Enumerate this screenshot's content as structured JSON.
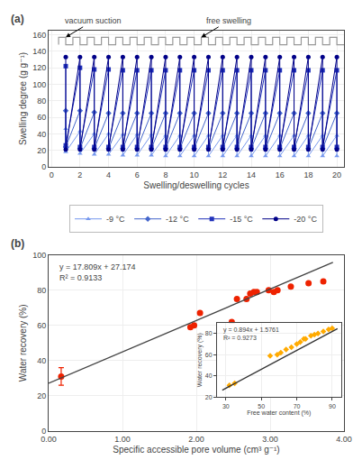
{
  "chart_data": [
    {
      "type": "line",
      "title": "(a)",
      "xlabel": "Swelling/deswelling cycles",
      "ylabel": "Swelling degree (g g⁻¹)",
      "x": [
        1,
        2,
        3,
        4,
        5,
        6,
        7,
        8,
        9,
        10,
        11,
        12,
        13,
        14,
        15,
        16,
        17,
        18,
        19,
        20
      ],
      "series": [
        {
          "name": "-9 °C",
          "color": "#7799ee",
          "marker": "triangle",
          "swollen": [
            46,
            43,
            40,
            40,
            39,
            39,
            39,
            38,
            38,
            38,
            38,
            38,
            38,
            38,
            38,
            38,
            38,
            38,
            38,
            38
          ],
          "unswollen": [
            18,
            16,
            15,
            15,
            14,
            14,
            14,
            13,
            13,
            13,
            13,
            13,
            13,
            13,
            13,
            13,
            13,
            13,
            13,
            13
          ]
        },
        {
          "name": "-12 °C",
          "color": "#4466cc",
          "marker": "diamond",
          "swollen": [
            68,
            68,
            66,
            65,
            65,
            65,
            65,
            65,
            65,
            65,
            65,
            65,
            65,
            65,
            65,
            65,
            65,
            65,
            65,
            65
          ],
          "unswollen": [
            24,
            22,
            22,
            22,
            22,
            22,
            22,
            22,
            22,
            22,
            22,
            22,
            22,
            22,
            22,
            22,
            22,
            22,
            22,
            22
          ]
        },
        {
          "name": "-15 °C",
          "color": "#2233bb",
          "marker": "square",
          "swollen": [
            122,
            120,
            118,
            118,
            117,
            117,
            117,
            117,
            117,
            117,
            117,
            117,
            117,
            117,
            117,
            117,
            117,
            117,
            117,
            117
          ],
          "unswollen": [
            26,
            24,
            24,
            24,
            24,
            24,
            24,
            24,
            24,
            24,
            24,
            24,
            24,
            24,
            24,
            24,
            24,
            24,
            24,
            24
          ]
        },
        {
          "name": "-20 °C",
          "color": "#000088",
          "marker": "circle",
          "swollen": [
            133,
            133,
            133,
            133,
            133,
            133,
            133,
            133,
            133,
            133,
            133,
            133,
            133,
            133,
            133,
            133,
            133,
            133,
            133,
            133
          ],
          "unswollen": [
            21,
            21,
            21,
            21,
            21,
            21,
            21,
            21,
            21,
            21,
            21,
            21,
            21,
            21,
            21,
            21,
            21,
            21,
            21,
            21
          ]
        },
        {
          "color": "#999999",
          "line_style": "step",
          "x": [
            0.5,
            1,
            1.5,
            2,
            2.5,
            3,
            3.5,
            4,
            4.5,
            5,
            5.5,
            6,
            6.5,
            7,
            7.5,
            8,
            8.5,
            9,
            9.5,
            10,
            10.5,
            11,
            11.5,
            12,
            12.5,
            13,
            13.5,
            14,
            14.5,
            15,
            15.5,
            16,
            16.5,
            17,
            17.5,
            18,
            18.5,
            19,
            19.5,
            20,
            20.5
          ],
          "values": [
            148,
            157,
            148,
            157,
            148,
            157,
            148,
            157,
            148,
            157,
            148,
            157,
            148,
            157,
            148,
            157,
            148,
            157,
            148,
            157,
            148,
            157,
            148,
            157,
            148,
            157,
            148,
            157,
            148,
            157,
            148,
            157,
            148,
            157,
            148,
            157,
            148,
            157,
            148,
            157,
            148
          ]
        }
      ],
      "annotations": [
        {
          "text": "vacuum suction",
          "x": 1.0,
          "y": 157
        },
        {
          "text": "free swelling",
          "x": 10.5,
          "y": 157
        }
      ],
      "xlim": [
        -0.2,
        20.5
      ],
      "xticks": [
        0,
        2,
        4,
        6,
        8,
        10,
        12,
        14,
        16,
        18,
        20
      ],
      "ylim": [
        0,
        165
      ],
      "yticks": [
        0,
        20,
        40,
        60,
        80,
        100,
        120,
        140,
        160
      ],
      "grid": true,
      "legend": "bottom"
    },
    {
      "type": "scatter",
      "title": "(b)",
      "xlabel": "Specific accessible pore volume (cm³ g⁻¹)",
      "ylabel": "Water recovery (%)",
      "series": [
        {
          "type": "scatter",
          "color": "#ee2200",
          "marker": "circle",
          "x": [
            0.17,
            1.92,
            1.97,
            2.05,
            2.48,
            2.55,
            2.68,
            2.73,
            2.78,
            2.82,
            2.98,
            3.05,
            3.1,
            3.28,
            3.52,
            3.72
          ],
          "values": [
            31,
            59,
            60,
            67,
            62,
            75,
            75,
            78,
            79,
            79,
            80,
            79,
            80,
            82,
            84,
            85
          ],
          "error": [
            5,
            null,
            null,
            null,
            null,
            null,
            null,
            null,
            null,
            null,
            null,
            null,
            null,
            null,
            null,
            null
          ]
        },
        {
          "type": "line",
          "color": "#444444",
          "x": [
            0.0,
            3.85
          ],
          "values": [
            27.174,
            95.73865
          ]
        }
      ],
      "annotations": [
        {
          "text": "y = 17.809x + 27.174\nR² = 0.9133"
        }
      ],
      "xlim": [
        0.0,
        4.0
      ],
      "xticks": [
        {
          "value": 0.0,
          "label": "0.00"
        },
        {
          "value": 1.0,
          "label": "1.00"
        },
        {
          "value": 2.0,
          "label": "2.00"
        },
        {
          "value": 3.0,
          "label": "3.00"
        },
        {
          "value": 4.0,
          "label": "4.00"
        }
      ],
      "ylim": [
        0,
        100
      ],
      "yticks": [
        0,
        20,
        40,
        60,
        80,
        100
      ],
      "grid": true
    },
    {
      "type": "scatter",
      "xlabel": "Free water content (%)",
      "ylabel": "Water recovery (%)",
      "series": [
        {
          "type": "scatter",
          "color": "#ffaa00",
          "marker": "diamond",
          "x": [
            32,
            35,
            55,
            59,
            61,
            64,
            67,
            70,
            72,
            74,
            75,
            78,
            80,
            82,
            85,
            88,
            90
          ],
          "values": [
            31,
            33,
            59,
            60,
            62,
            65,
            67,
            70,
            72,
            75,
            75,
            78,
            79,
            80,
            82,
            84,
            85
          ]
        },
        {
          "type": "line",
          "color": "#333333",
          "x": [
            28,
            93
          ],
          "values": [
            26.6081,
            84.7181
          ]
        }
      ],
      "annotations": [
        {
          "text": "y = 0.894x + 1.5761\nR² = 0.9273"
        }
      ],
      "xlim": [
        25,
        95
      ],
      "xticks": [
        30,
        50,
        70,
        90
      ],
      "ylim": [
        20,
        90
      ],
      "yticks": [
        20,
        40,
        60,
        80
      ],
      "grid": true
    }
  ]
}
